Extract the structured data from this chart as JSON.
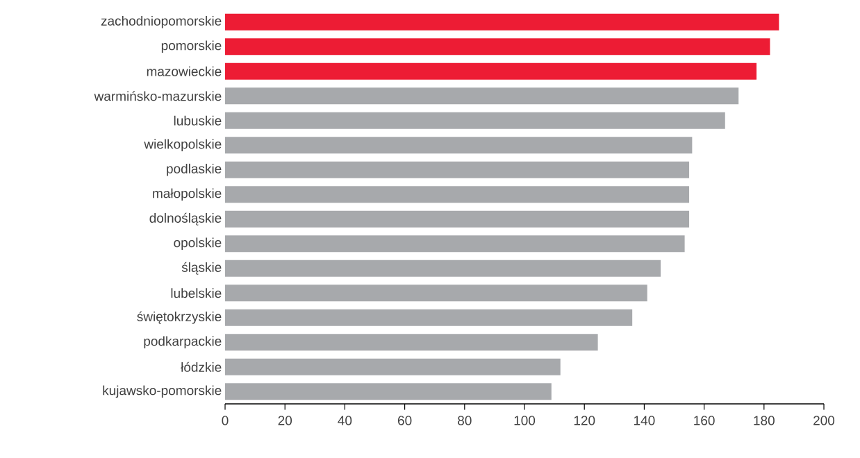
{
  "chart_data": {
    "type": "bar",
    "orientation": "horizontal",
    "categories": [
      "zachodniopomorskie",
      "pomorskie",
      "mazowieckie",
      "warmińsko-mazurskie",
      "lubuskie",
      "wielkopolskie",
      "podlaskie",
      "małopolskie",
      "dolnośląskie",
      "opolskie",
      "śląskie",
      "lubelskie",
      "świętokrzyskie",
      "podkarpackie",
      "łódzkie",
      "kujawsko-pomorskie"
    ],
    "values": [
      185,
      182,
      177.5,
      171.5,
      167,
      156,
      155,
      155,
      155,
      153.5,
      145.5,
      141,
      136,
      124.5,
      112,
      109
    ],
    "colors": [
      "#ed1c34",
      "#ed1c34",
      "#ed1c34",
      "#a7a9ac",
      "#a7a9ac",
      "#a7a9ac",
      "#a7a9ac",
      "#a7a9ac",
      "#a7a9ac",
      "#a7a9ac",
      "#a7a9ac",
      "#a7a9ac",
      "#a7a9ac",
      "#a7a9ac",
      "#a7a9ac",
      "#a7a9ac"
    ],
    "xlim": [
      0,
      200
    ],
    "xticks": [
      0,
      20,
      40,
      60,
      80,
      100,
      120,
      140,
      160,
      180,
      200
    ]
  }
}
